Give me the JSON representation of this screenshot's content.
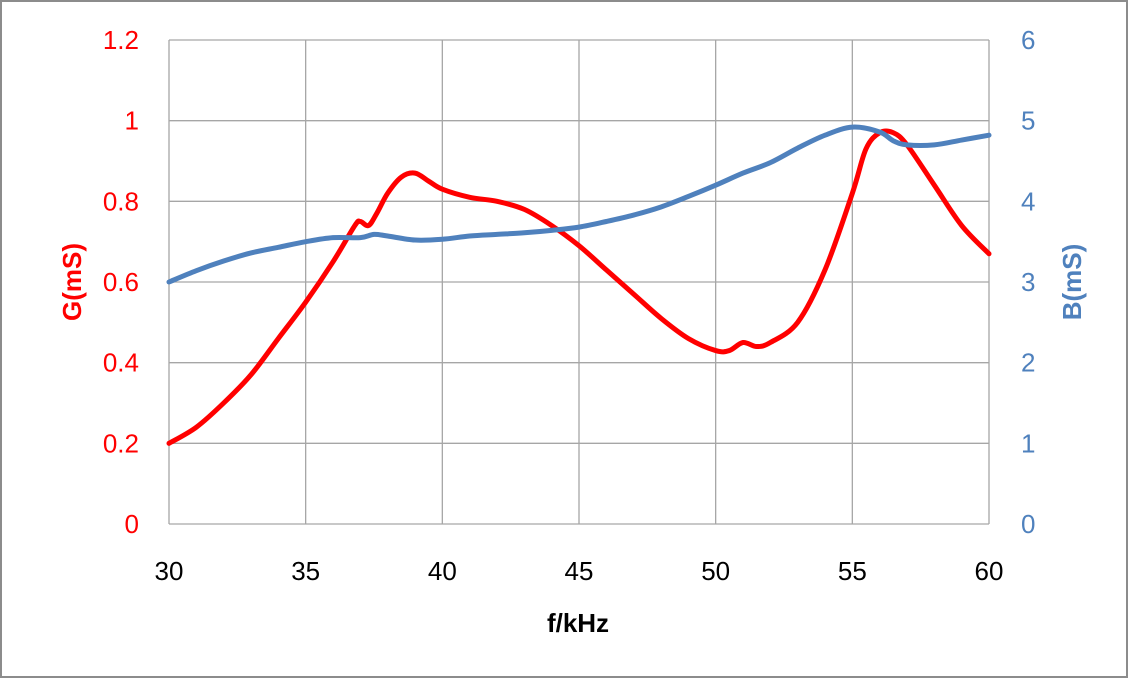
{
  "colors": {
    "g_series": "#ff0000",
    "b_series": "#4f81bd",
    "grid": "#a6a6a6",
    "axis_text": "#000000",
    "frame": "#8c8c8c"
  },
  "chart_data": {
    "type": "line",
    "xlabel": "f/kHz",
    "ylabel_left": "G(mS)",
    "ylabel_right": "B(mS)",
    "xlim": [
      30,
      60
    ],
    "ylim_left": [
      0,
      1.2
    ],
    "ylim_right": [
      0,
      6
    ],
    "x_ticks": [
      30,
      35,
      40,
      45,
      50,
      55,
      60
    ],
    "y_ticks_left": [
      "0",
      "0.2",
      "0.4",
      "0.6",
      "0.8",
      "1",
      "1.2"
    ],
    "y_ticks_right": [
      "0",
      "1",
      "2",
      "3",
      "4",
      "5",
      "6"
    ],
    "grid": true,
    "legend": "none",
    "series": [
      {
        "axis": "left",
        "color": "#ff0000",
        "points": [
          [
            30,
            0.2
          ],
          [
            31,
            0.24
          ],
          [
            32,
            0.3
          ],
          [
            33,
            0.37
          ],
          [
            34,
            0.46
          ],
          [
            35,
            0.55
          ],
          [
            36,
            0.65
          ],
          [
            36.8,
            0.74
          ],
          [
            37,
            0.75
          ],
          [
            37.3,
            0.74
          ],
          [
            37.6,
            0.77
          ],
          [
            38,
            0.82
          ],
          [
            38.5,
            0.86
          ],
          [
            39,
            0.87
          ],
          [
            39.5,
            0.85
          ],
          [
            40,
            0.83
          ],
          [
            41,
            0.81
          ],
          [
            42,
            0.8
          ],
          [
            43,
            0.78
          ],
          [
            44,
            0.74
          ],
          [
            45,
            0.69
          ],
          [
            46,
            0.63
          ],
          [
            47,
            0.57
          ],
          [
            48,
            0.51
          ],
          [
            49,
            0.46
          ],
          [
            50,
            0.43
          ],
          [
            50.5,
            0.43
          ],
          [
            51,
            0.45
          ],
          [
            51.5,
            0.44
          ],
          [
            52,
            0.45
          ],
          [
            53,
            0.5
          ],
          [
            54,
            0.63
          ],
          [
            55,
            0.82
          ],
          [
            55.5,
            0.93
          ],
          [
            56,
            0.97
          ],
          [
            56.5,
            0.97
          ],
          [
            57,
            0.94
          ],
          [
            58,
            0.84
          ],
          [
            59,
            0.74
          ],
          [
            60,
            0.67
          ]
        ]
      },
      {
        "axis": "right",
        "color": "#4f81bd",
        "points": [
          [
            30,
            3.0
          ],
          [
            31,
            3.14
          ],
          [
            32,
            3.26
          ],
          [
            33,
            3.36
          ],
          [
            34,
            3.43
          ],
          [
            35,
            3.5
          ],
          [
            36,
            3.55
          ],
          [
            37,
            3.55
          ],
          [
            37.5,
            3.59
          ],
          [
            38,
            3.57
          ],
          [
            39,
            3.52
          ],
          [
            40,
            3.53
          ],
          [
            41,
            3.57
          ],
          [
            42,
            3.59
          ],
          [
            43,
            3.61
          ],
          [
            44,
            3.64
          ],
          [
            45,
            3.68
          ],
          [
            46,
            3.75
          ],
          [
            47,
            3.83
          ],
          [
            48,
            3.93
          ],
          [
            49,
            4.06
          ],
          [
            50,
            4.2
          ],
          [
            51,
            4.35
          ],
          [
            52,
            4.48
          ],
          [
            53,
            4.66
          ],
          [
            54,
            4.82
          ],
          [
            55,
            4.92
          ],
          [
            56,
            4.86
          ],
          [
            56.5,
            4.75
          ],
          [
            57,
            4.7
          ],
          [
            58,
            4.7
          ],
          [
            59,
            4.76
          ],
          [
            60,
            4.82
          ]
        ]
      }
    ]
  }
}
